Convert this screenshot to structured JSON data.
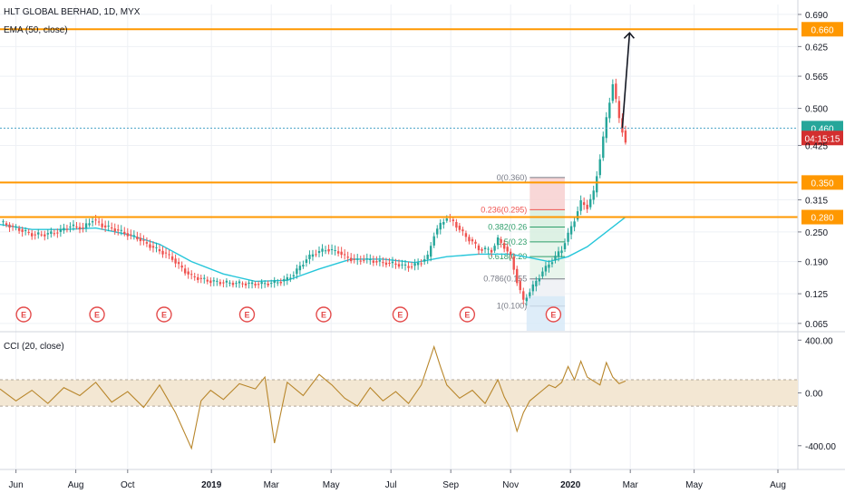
{
  "chart_data": [
    {
      "type": "candlestick",
      "title": "HLT GLOBAL BERHAD, 1D, MYX",
      "indicator_label": "EMA (50, close)",
      "price_axis": {
        "ticks": [
          "0.690",
          "0.625",
          "0.565",
          "0.500",
          "0.425",
          "0.315",
          "0.250",
          "0.190",
          "0.125",
          "0.065"
        ],
        "ylim": [
          0.05,
          0.71
        ]
      },
      "horizontal_levels": [
        {
          "label": "0.660",
          "value": 0.66
        },
        {
          "label": "0.460",
          "value": 0.46
        },
        {
          "label": "04:15:15",
          "value": 0.44
        },
        {
          "label": "0.350",
          "value": 0.35
        },
        {
          "label": "0.280",
          "value": 0.28
        }
      ],
      "fibonacci": [
        {
          "label": "0(0.360)",
          "value": 0.36
        },
        {
          "label": "0.236(0.295)",
          "value": 0.295
        },
        {
          "label": "0.382(0.26",
          "value": 0.26
        },
        {
          "label": "0.5(0.23",
          "value": 0.23
        },
        {
          "label": "0.618(0.20",
          "value": 0.2
        },
        {
          "label": "0.786(0.155",
          "value": 0.155
        },
        {
          "label": "1(0.100)",
          "value": 0.1
        }
      ],
      "earnings_marker": "E",
      "earnings_count": 8,
      "price_series": [
        [
          0,
          0.27
        ],
        [
          6,
          0.255
        ],
        [
          10,
          0.245
        ],
        [
          14,
          0.245
        ],
        [
          18,
          0.25
        ],
        [
          22,
          0.262
        ],
        [
          26,
          0.258
        ],
        [
          29,
          0.275
        ],
        [
          32,
          0.263
        ],
        [
          36,
          0.255
        ],
        [
          40,
          0.245
        ],
        [
          43,
          0.238
        ],
        [
          46,
          0.225
        ],
        [
          49,
          0.215
        ],
        [
          52,
          0.205
        ],
        [
          54,
          0.196
        ],
        [
          56,
          0.182
        ],
        [
          58,
          0.17
        ],
        [
          60,
          0.16
        ],
        [
          63,
          0.155
        ],
        [
          66,
          0.15
        ],
        [
          69,
          0.148
        ],
        [
          72,
          0.147
        ],
        [
          75,
          0.146
        ],
        [
          78,
          0.145
        ],
        [
          80,
          0.145
        ],
        [
          82,
          0.145
        ],
        [
          84,
          0.146
        ],
        [
          86,
          0.148
        ],
        [
          88,
          0.15
        ],
        [
          90,
          0.155
        ],
        [
          92,
          0.165
        ],
        [
          94,
          0.18
        ],
        [
          96,
          0.195
        ],
        [
          98,
          0.205
        ],
        [
          100,
          0.21
        ],
        [
          102,
          0.215
        ],
        [
          104,
          0.212
        ],
        [
          106,
          0.21
        ],
        [
          108,
          0.2
        ],
        [
          110,
          0.195
        ],
        [
          112,
          0.192
        ],
        [
          114,
          0.195
        ],
        [
          116,
          0.192
        ],
        [
          118,
          0.19
        ],
        [
          120,
          0.188
        ],
        [
          122,
          0.187
        ],
        [
          124,
          0.185
        ],
        [
          126,
          0.182
        ],
        [
          128,
          0.18
        ],
        [
          130,
          0.183
        ],
        [
          132,
          0.19
        ],
        [
          134,
          0.2
        ],
        [
          136,
          0.245
        ],
        [
          138,
          0.265
        ],
        [
          140,
          0.28
        ],
        [
          142,
          0.27
        ],
        [
          144,
          0.255
        ],
        [
          146,
          0.24
        ],
        [
          148,
          0.23
        ],
        [
          150,
          0.215
        ],
        [
          152,
          0.215
        ],
        [
          154,
          0.212
        ],
        [
          156,
          0.235
        ],
        [
          158,
          0.22
        ],
        [
          160,
          0.2
        ],
        [
          162,
          0.15
        ],
        [
          164,
          0.11
        ],
        [
          166,
          0.13
        ],
        [
          168,
          0.15
        ],
        [
          170,
          0.17
        ],
        [
          172,
          0.185
        ],
        [
          174,
          0.2
        ],
        [
          176,
          0.215
        ],
        [
          178,
          0.245
        ],
        [
          180,
          0.275
        ],
        [
          182,
          0.31
        ],
        [
          184,
          0.3
        ],
        [
          186,
          0.33
        ],
        [
          188,
          0.4
        ],
        [
          190,
          0.48
        ],
        [
          192,
          0.55
        ],
        [
          194,
          0.48
        ],
        [
          196,
          0.43
        ]
      ],
      "ema_series": [
        [
          0,
          0.265
        ],
        [
          10,
          0.255
        ],
        [
          20,
          0.255
        ],
        [
          30,
          0.258
        ],
        [
          40,
          0.245
        ],
        [
          50,
          0.225
        ],
        [
          60,
          0.19
        ],
        [
          70,
          0.165
        ],
        [
          80,
          0.15
        ],
        [
          90,
          0.152
        ],
        [
          100,
          0.175
        ],
        [
          110,
          0.195
        ],
        [
          120,
          0.195
        ],
        [
          130,
          0.188
        ],
        [
          140,
          0.2
        ],
        [
          150,
          0.205
        ],
        [
          160,
          0.205
        ],
        [
          166,
          0.198
        ],
        [
          172,
          0.19
        ],
        [
          178,
          0.2
        ],
        [
          184,
          0.22
        ],
        [
          190,
          0.25
        ],
        [
          196,
          0.28
        ]
      ],
      "projection_arrow": {
        "from": 0.46,
        "to": 0.66
      }
    },
    {
      "type": "line",
      "title": "CCI (20, close)",
      "y_axis": {
        "ticks": [
          "400.00",
          "0.00",
          "-400.00"
        ],
        "ylim": [
          -580,
          450
        ]
      },
      "band": [
        -100,
        100
      ],
      "series": [
        [
          0,
          30
        ],
        [
          5,
          -60
        ],
        [
          10,
          20
        ],
        [
          15,
          -80
        ],
        [
          20,
          40
        ],
        [
          25,
          -20
        ],
        [
          30,
          80
        ],
        [
          35,
          -70
        ],
        [
          40,
          10
        ],
        [
          45,
          -110
        ],
        [
          50,
          60
        ],
        [
          55,
          -150
        ],
        [
          60,
          -420
        ],
        [
          63,
          -60
        ],
        [
          66,
          20
        ],
        [
          70,
          -50
        ],
        [
          75,
          70
        ],
        [
          80,
          30
        ],
        [
          83,
          120
        ],
        [
          86,
          -380
        ],
        [
          90,
          80
        ],
        [
          95,
          -20
        ],
        [
          100,
          140
        ],
        [
          104,
          60
        ],
        [
          108,
          -40
        ],
        [
          112,
          -100
        ],
        [
          116,
          40
        ],
        [
          120,
          -60
        ],
        [
          124,
          10
        ],
        [
          128,
          -80
        ],
        [
          132,
          60
        ],
        [
          136,
          350
        ],
        [
          138,
          200
        ],
        [
          140,
          60
        ],
        [
          144,
          -40
        ],
        [
          148,
          20
        ],
        [
          152,
          -80
        ],
        [
          156,
          100
        ],
        [
          158,
          -30
        ],
        [
          160,
          -120
        ],
        [
          162,
          -290
        ],
        [
          164,
          -150
        ],
        [
          166,
          -60
        ],
        [
          168,
          -20
        ],
        [
          170,
          20
        ],
        [
          172,
          60
        ],
        [
          174,
          40
        ],
        [
          176,
          80
        ],
        [
          178,
          200
        ],
        [
          180,
          100
        ],
        [
          182,
          240
        ],
        [
          184,
          120
        ],
        [
          186,
          90
        ],
        [
          188,
          60
        ],
        [
          190,
          230
        ],
        [
          192,
          120
        ],
        [
          194,
          70
        ],
        [
          196,
          90
        ]
      ]
    }
  ],
  "x_axis": {
    "labels": [
      {
        "text": "Jun",
        "pos": 0.02,
        "bold": false
      },
      {
        "text": "Aug",
        "pos": 0.095,
        "bold": false
      },
      {
        "text": "Oct",
        "pos": 0.16,
        "bold": false
      },
      {
        "text": "2019",
        "pos": 0.265,
        "bold": true
      },
      {
        "text": "Mar",
        "pos": 0.34,
        "bold": false
      },
      {
        "text": "May",
        "pos": 0.415,
        "bold": false
      },
      {
        "text": "Jul",
        "pos": 0.49,
        "bold": false
      },
      {
        "text": "Sep",
        "pos": 0.565,
        "bold": false
      },
      {
        "text": "Nov",
        "pos": 0.64,
        "bold": false
      },
      {
        "text": "2020",
        "pos": 0.715,
        "bold": true
      },
      {
        "text": "Mar",
        "pos": 0.79,
        "bold": false
      },
      {
        "text": "May",
        "pos": 0.87,
        "bold": false
      },
      {
        "text": "Aug",
        "pos": 0.975,
        "bold": false
      }
    ]
  },
  "colors": {
    "level": "#ff9800",
    "up": "#26a69a",
    "down": "#ef5350",
    "ema": "#26c6da",
    "cci": "#b8862b",
    "cci_band": "#f3e7d3",
    "fib_red": "#f7d3d3",
    "fib_green": "#d9efe1",
    "earnings": "#e44c4c",
    "axis_text": "#131722",
    "grid": "#eef1f5"
  }
}
